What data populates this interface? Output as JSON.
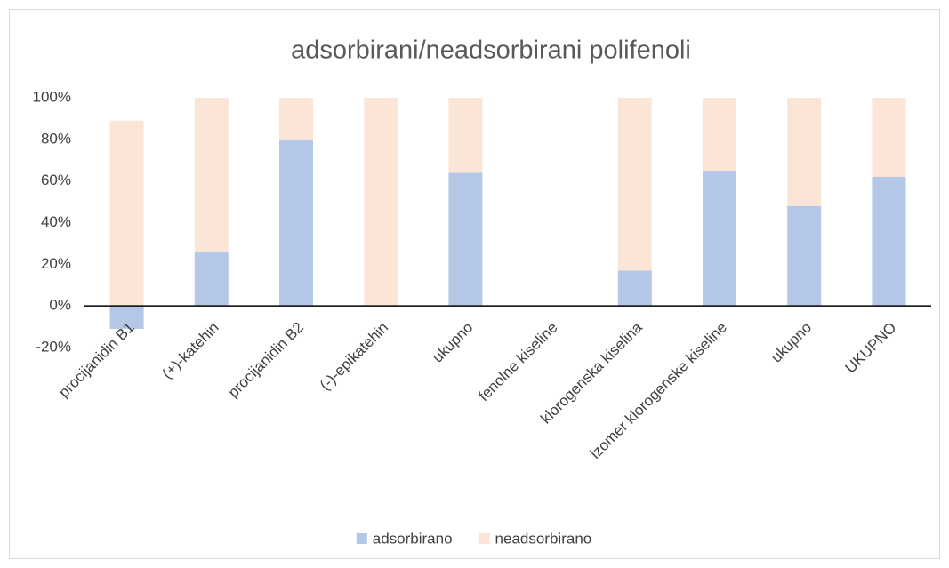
{
  "chart_data": {
    "type": "stacked_bar",
    "title": "adsorbirani/neadsorbirani polifenoli",
    "categories": [
      "procijanidin B1",
      "(+)-katehin",
      "procijanidin B2",
      "(-)-epikatehin",
      "ukupno",
      "fenolne kiseline",
      "klorogenska kiselina",
      "izomer klorogenske kiseline",
      "ukupno",
      "UKUPNO"
    ],
    "series": [
      {
        "name": "adsorbirano",
        "color": "#b4c7e7",
        "values": [
          -11,
          26,
          80,
          0,
          64,
          null,
          17,
          65,
          48,
          62
        ]
      },
      {
        "name": "neadsorbirano",
        "color": "#fbe5d6",
        "values": [
          89,
          74,
          20,
          100,
          36,
          null,
          83,
          35,
          52,
          38
        ]
      }
    ],
    "ylim": [
      -20,
      100
    ],
    "yticks": [
      {
        "value": -20,
        "label": "-20%"
      },
      {
        "value": 0,
        "label": "0%"
      },
      {
        "value": 20,
        "label": "20%"
      },
      {
        "value": 40,
        "label": "40%"
      },
      {
        "value": 60,
        "label": "60%"
      },
      {
        "value": 80,
        "label": "80%"
      },
      {
        "value": 100,
        "label": "100%"
      }
    ],
    "legend": "bottom"
  }
}
